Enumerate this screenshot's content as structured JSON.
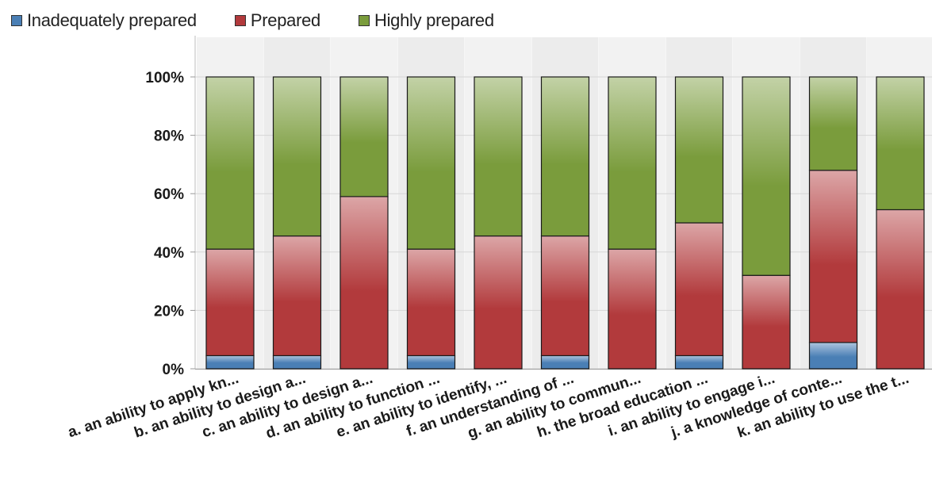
{
  "chart_data": {
    "type": "bar",
    "stacked": true,
    "normalized": true,
    "categories": [
      "a. an ability to apply kn...",
      "b. an ability to design a...",
      "c. an ability to design a...",
      "d. an ability to function ...",
      "e. an ability to identify, ...",
      "f. an understanding of ...",
      "g. an ability to commun...",
      "h. the broad education ...",
      "i. an ability to engage i...",
      "j. a knowledge of conte...",
      "k. an ability to use the t..."
    ],
    "series": [
      {
        "name": "Inadequately prepared",
        "color": "#4a7fb5",
        "values": [
          4.5,
          4.5,
          0,
          4.5,
          0,
          4.5,
          0,
          4.5,
          0,
          9,
          0
        ]
      },
      {
        "name": "Prepared",
        "color": "#b23a3c",
        "values": [
          36.5,
          41,
          59,
          36.5,
          45.5,
          41,
          41,
          45.5,
          32,
          59,
          54.5
        ]
      },
      {
        "name": "Highly prepared",
        "color": "#7a9c3c",
        "values": [
          59,
          54.5,
          41,
          59,
          54.5,
          54.5,
          59,
          50,
          68,
          32,
          45.5
        ]
      }
    ],
    "yticks": [
      "0%",
      "20%",
      "40%",
      "60%",
      "80%",
      "100%"
    ],
    "ylim": [
      0,
      100
    ],
    "grid": true,
    "legend_position": "top-left"
  }
}
